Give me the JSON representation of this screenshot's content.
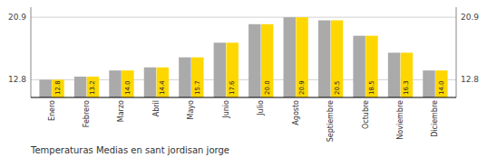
{
  "chart_data": {
    "type": "bar",
    "title": "Temperaturas Medias en sant jordisan jorge",
    "categories": [
      "Enero",
      "Febrero",
      "Marzo",
      "Abril",
      "Mayo",
      "Junio",
      "Julio",
      "Agosto",
      "Septiembre",
      "Octubre",
      "Noviembre",
      "Diciembre"
    ],
    "series": [
      {
        "color": "#AAAAAA",
        "values": [
          12.8,
          13.2,
          14.0,
          14.4,
          15.7,
          17.6,
          20.0,
          20.9,
          20.5,
          18.5,
          16.3,
          14.0
        ]
      },
      {
        "color": "#FFD700",
        "values": [
          12.8,
          13.2,
          14.0,
          14.4,
          15.7,
          17.6,
          20.0,
          20.9,
          20.5,
          18.5,
          16.3,
          14.0
        ],
        "data_labels": true,
        "value_labels": [
          "12.8",
          "13.2",
          "14.0",
          "14.4",
          "15.7",
          "17.6",
          "20.0",
          "20.9",
          "20.5",
          "18.5",
          "16.3",
          "14.0"
        ]
      }
    ],
    "ylim": [
      10.5,
      22.2
    ],
    "yticks": [
      12.8,
      20.9
    ],
    "grid": true
  }
}
